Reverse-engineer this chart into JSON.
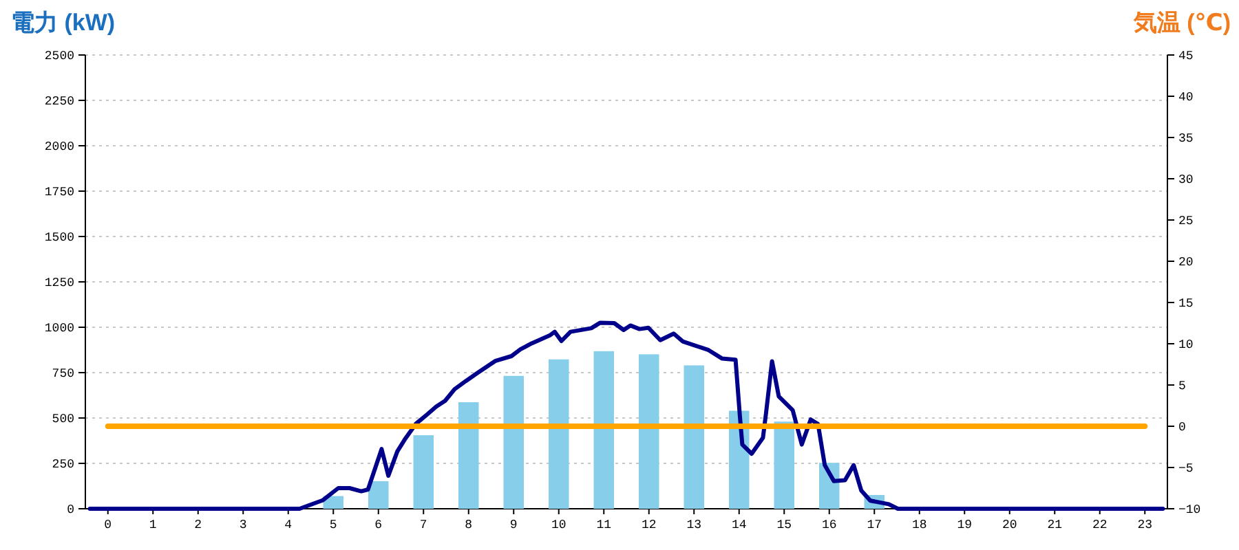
{
  "chart_data": {
    "type": "bar",
    "ylabel": "電力 (kW)",
    "y2label": "気温 (℃)",
    "x": [
      0,
      1,
      2,
      3,
      4,
      5,
      6,
      7,
      8,
      9,
      10,
      11,
      12,
      13,
      14,
      15,
      16,
      17,
      18,
      19,
      20,
      21,
      22,
      23
    ],
    "xlim": [
      -0.5,
      23.5
    ],
    "xticks": [
      0,
      1,
      2,
      3,
      4,
      5,
      6,
      7,
      8,
      9,
      10,
      11,
      12,
      13,
      14,
      15,
      16,
      17,
      18,
      19,
      20,
      21,
      22,
      23
    ],
    "ylim": [
      0,
      2500
    ],
    "yticks": [
      0,
      250,
      500,
      750,
      1000,
      1250,
      1500,
      1750,
      2000,
      2250,
      2500
    ],
    "y2lim": [
      -10,
      45
    ],
    "y2ticks": [
      -10,
      -5,
      0,
      5,
      10,
      15,
      20,
      25,
      30,
      35,
      40,
      45
    ],
    "grid": "y",
    "series": [
      {
        "color": "#87ceeb",
        "values": [
          0,
          0,
          0,
          0,
          0,
          70,
          152,
          405,
          587,
          732,
          823,
          868,
          851,
          790,
          540,
          480,
          253,
          76,
          0,
          0,
          0,
          0,
          0,
          0
        ]
      },
      {
        "type": "line",
        "color": "#00008b",
        "x": [
          -0.4,
          4.25,
          4.76,
          5.11,
          5.36,
          5.62,
          5.77,
          6.07,
          6.22,
          6.42,
          6.58,
          6.83,
          7.08,
          7.28,
          7.48,
          7.69,
          7.94,
          8.19,
          8.6,
          8.95,
          9.15,
          9.4,
          9.81,
          9.91,
          10.06,
          10.26,
          10.72,
          10.92,
          11.23,
          11.44,
          11.59,
          11.79,
          11.99,
          12.25,
          12.55,
          12.75,
          13.31,
          13.62,
          13.92,
          14.02,
          14.07,
          14.28,
          14.53,
          14.6,
          14.73,
          14.88,
          15.19,
          15.39,
          15.59,
          15.75,
          15.9,
          16.1,
          16.35,
          16.54,
          16.71,
          16.91,
          17.32,
          17.52,
          23.4
        ],
        "values": [
          0,
          0,
          46,
          114,
          114,
          96,
          106,
          329,
          182,
          316,
          380,
          468,
          519,
          562,
          595,
          658,
          704,
          747,
          815,
          841,
          878,
          911,
          957,
          975,
          924,
          975,
          995,
          1025,
          1023,
          985,
          1010,
          990,
          997,
          929,
          965,
          922,
          876,
          828,
          821,
          505,
          354,
          303,
          391,
          530,
          813,
          619,
          543,
          354,
          492,
          467,
          240,
          152,
          157,
          240,
          101,
          45,
          25,
          0,
          0
        ]
      },
      {
        "type": "line",
        "axis": "y2",
        "color": "#ffa500",
        "values": [
          0,
          0,
          0,
          0,
          0,
          0,
          0,
          0,
          0,
          0,
          0,
          0,
          0,
          0,
          0,
          0,
          0,
          0,
          0,
          0,
          0,
          0,
          0,
          0
        ]
      }
    ]
  }
}
